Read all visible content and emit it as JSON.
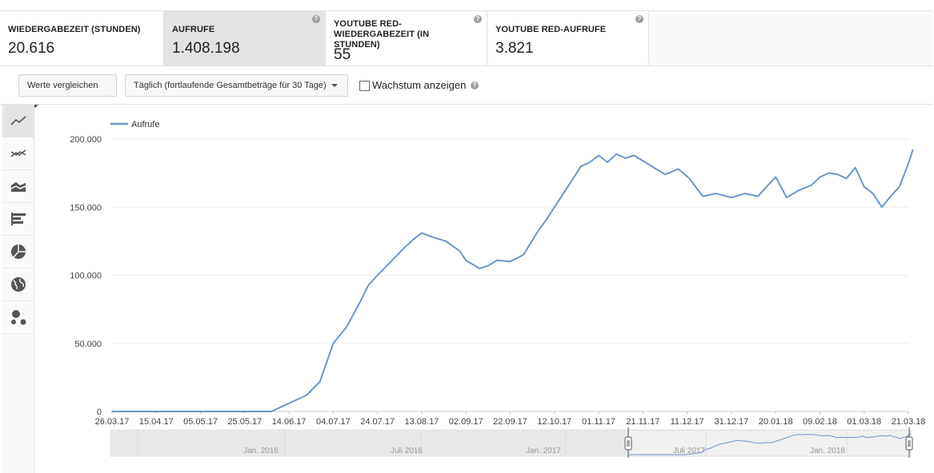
{
  "metrics": [
    {
      "label": "WIEDERGABEZEIT (STUNDEN)",
      "value": "20.616",
      "help": false,
      "selected": false
    },
    {
      "label": "AUFRUFE",
      "value": "1.408.198",
      "help": true,
      "selected": true
    },
    {
      "label": "YOUTUBE RED-WIEDERGABEZEIT (IN STUNDEN)",
      "value": "55",
      "help": true,
      "selected": false
    },
    {
      "label": "YOUTUBE RED-AUFRUFE",
      "value": "3.821",
      "help": true,
      "selected": false
    }
  ],
  "help_glyph": "?",
  "controls": {
    "compare_label": "Werte vergleichen",
    "interval_label": "Täglich (fortlaufende Gesamtbeträge für 30 Tage)",
    "growth_label": "Wachstum anzeigen",
    "growth_checked": false
  },
  "chart_types": [
    "line-chart-icon",
    "multiline-chart-icon",
    "stacked-area-icon",
    "bar-chart-icon",
    "pie-chart-icon",
    "globe-map-icon",
    "bubble-chart-icon"
  ],
  "colors": {
    "series": "#6b96c8",
    "grid": "#eeeeee",
    "navigator_bg": "#f0f0f0"
  },
  "chart_data": {
    "type": "line",
    "legend_position": "top-left",
    "grid": true,
    "series": [
      {
        "name": "Aufrufe",
        "x": [
          "26.03.17",
          "15.04.17",
          "05.05.17",
          "25.05.17",
          "06.06.17",
          "14.06.17",
          "22.06.17",
          "28.06.17",
          "04.07.17",
          "10.07.17",
          "16.07.17",
          "20.07.17",
          "24.07.17",
          "30.07.17",
          "05.08.17",
          "09.08.17",
          "13.08.17",
          "18.08.17",
          "24.08.17",
          "30.08.17",
          "02.09.17",
          "08.09.17",
          "12.09.17",
          "16.09.17",
          "22.09.17",
          "28.09.17",
          "04.10.17",
          "08.10.17",
          "12.10.17",
          "18.10.17",
          "24.10.17",
          "28.10.17",
          "01.11.17",
          "05.11.17",
          "09.11.17",
          "13.11.17",
          "17.11.17",
          "21.11.17",
          "25.11.17",
          "01.12.17",
          "07.12.17",
          "12.12.17",
          "18.12.17",
          "24.12.17",
          "31.12.17",
          "06.01.18",
          "12.01.18",
          "17.01.18",
          "20.01.18",
          "25.01.18",
          "30.01.18",
          "05.02.18",
          "09.02.18",
          "13.02.18",
          "17.02.18",
          "21.02.18",
          "25.02.18",
          "01.03.18",
          "05.03.18",
          "09.03.18",
          "13.03.18",
          "17.03.18",
          "21.03.18",
          "23.03.18"
        ],
        "y": [
          0,
          0,
          0,
          0,
          0,
          6000,
          12000,
          22000,
          50000,
          62000,
          80000,
          93000,
          100000,
          110000,
          120000,
          126000,
          131000,
          128000,
          125000,
          118000,
          111000,
          105000,
          107000,
          111000,
          110000,
          115000,
          131000,
          140000,
          150000,
          165000,
          180000,
          183000,
          188000,
          183000,
          189000,
          186000,
          188000,
          184000,
          180000,
          174000,
          178000,
          171000,
          158000,
          160000,
          157000,
          160000,
          158000,
          167000,
          172000,
          157000,
          162000,
          166000,
          172000,
          175000,
          174000,
          171000,
          179000,
          165000,
          160000,
          150000,
          158000,
          165000,
          182000,
          192000
        ]
      }
    ],
    "ylim": [
      0,
      200000
    ],
    "yticks": [
      "0",
      "50.000",
      "100.000",
      "150.000",
      "200.000"
    ],
    "xticks": [
      "26.03.17",
      "15.04.17",
      "05.05.17",
      "25.05.17",
      "14.06.17",
      "04.07.17",
      "24.07.17",
      "13.08.17",
      "02.09.17",
      "22.09.17",
      "12.10.17",
      "01.11.17",
      "21.11.17",
      "11.12.17",
      "31.12.17",
      "20.01.18",
      "09.02.18",
      "01.03.18",
      "21.03.18"
    ]
  },
  "navigator": {
    "labels": [
      "Jan. 2016",
      "Juli 2016",
      "Jan. 2017",
      "Juli 2017",
      "Jan. 2018"
    ]
  }
}
